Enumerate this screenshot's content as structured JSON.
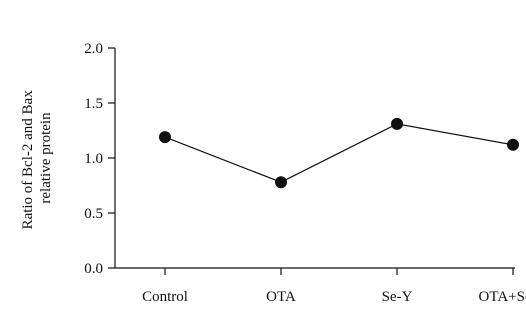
{
  "chart_data": {
    "type": "line",
    "categories": [
      "Control",
      "OTA",
      "Se-Y",
      "OTA+Se-Y"
    ],
    "values": [
      1.19,
      0.78,
      1.31,
      1.12
    ],
    "ylabel_lines": [
      "Ratio of Bcl-2 and Bax",
      "relative protein"
    ],
    "xlabel": "",
    "ylim": [
      0.0,
      2.0
    ],
    "yticks": [
      "0.0",
      "0.5",
      "1.0",
      "1.5",
      "2.0"
    ],
    "grid": false,
    "colors": {
      "line": "#111111",
      "marker": "#111111"
    }
  }
}
